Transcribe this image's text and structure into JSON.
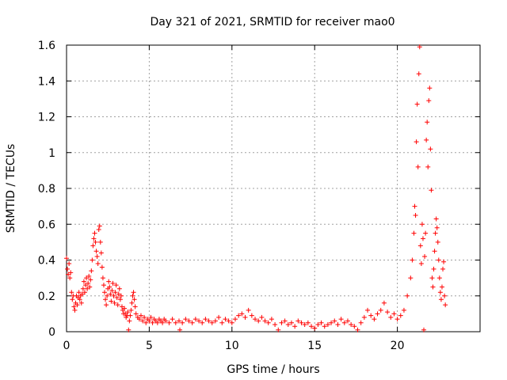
{
  "chart_data": {
    "type": "scatter",
    "title": "Day 321 of 2021, SRMTID for receiver mao0",
    "xlabel": "GPS time / hours",
    "ylabel": "SRMTID / TECUs",
    "xlim": [
      0,
      25
    ],
    "ylim": [
      0,
      1.6
    ],
    "x_ticks": [
      0,
      5,
      10,
      15,
      20
    ],
    "x_tick_labels": [
      "0",
      "5",
      "10",
      "15",
      "20"
    ],
    "y_ticks": [
      0,
      0.2,
      0.4,
      0.6,
      0.8,
      1,
      1.2,
      1.4,
      1.6
    ],
    "y_tick_labels": [
      "0",
      "0.2",
      "0.4",
      "0.6",
      "0.8",
      "1",
      "1.2",
      "1.4",
      "1.6"
    ],
    "grid": true,
    "marker": "+",
    "color": "#ff0000",
    "series": [
      {
        "points": [
          [
            0.0,
            0.41
          ],
          [
            0.05,
            0.35
          ],
          [
            0.1,
            0.32
          ],
          [
            0.15,
            0.38
          ],
          [
            0.2,
            0.3
          ],
          [
            0.25,
            0.33
          ],
          [
            0.3,
            0.22
          ],
          [
            0.35,
            0.18
          ],
          [
            0.4,
            0.2
          ],
          [
            0.45,
            0.14
          ],
          [
            0.5,
            0.12
          ],
          [
            0.55,
            0.16
          ],
          [
            0.6,
            0.2
          ],
          [
            0.65,
            0.15
          ],
          [
            0.7,
            0.19
          ],
          [
            0.75,
            0.22
          ],
          [
            0.8,
            0.18
          ],
          [
            0.85,
            0.2
          ],
          [
            0.9,
            0.16
          ],
          [
            0.95,
            0.21
          ],
          [
            1.0,
            0.24
          ],
          [
            1.05,
            0.28
          ],
          [
            1.1,
            0.22
          ],
          [
            1.15,
            0.26
          ],
          [
            1.2,
            0.3
          ],
          [
            1.25,
            0.24
          ],
          [
            1.3,
            0.27
          ],
          [
            1.35,
            0.31
          ],
          [
            1.4,
            0.25
          ],
          [
            1.45,
            0.29
          ],
          [
            1.5,
            0.34
          ],
          [
            1.55,
            0.4
          ],
          [
            1.6,
            0.48
          ],
          [
            1.65,
            0.52
          ],
          [
            1.7,
            0.55
          ],
          [
            1.75,
            0.5
          ],
          [
            1.8,
            0.45
          ],
          [
            1.85,
            0.42
          ],
          [
            1.9,
            0.38
          ],
          [
            1.95,
            0.57
          ],
          [
            2.0,
            0.59
          ],
          [
            2.05,
            0.5
          ],
          [
            2.1,
            0.44
          ],
          [
            2.15,
            0.36
          ],
          [
            2.2,
            0.3
          ],
          [
            2.25,
            0.26
          ],
          [
            2.3,
            0.22
          ],
          [
            2.35,
            0.18
          ],
          [
            2.4,
            0.15
          ],
          [
            2.45,
            0.2
          ],
          [
            2.5,
            0.24
          ],
          [
            2.55,
            0.28
          ],
          [
            2.6,
            0.25
          ],
          [
            2.65,
            0.21
          ],
          [
            2.7,
            0.17
          ],
          [
            2.75,
            0.23
          ],
          [
            2.8,
            0.27
          ],
          [
            2.85,
            0.2
          ],
          [
            2.9,
            0.16
          ],
          [
            2.95,
            0.22
          ],
          [
            3.0,
            0.26
          ],
          [
            3.05,
            0.19
          ],
          [
            3.1,
            0.15
          ],
          [
            3.15,
            0.21
          ],
          [
            3.2,
            0.24
          ],
          [
            3.25,
            0.18
          ],
          [
            3.3,
            0.2
          ],
          [
            3.35,
            0.14
          ],
          [
            3.4,
            0.12
          ],
          [
            3.45,
            0.1
          ],
          [
            3.5,
            0.13
          ],
          [
            3.55,
            0.1
          ],
          [
            3.6,
            0.08
          ],
          [
            3.65,
            0.09
          ],
          [
            3.7,
            0.11
          ],
          [
            3.75,
            0.01
          ],
          [
            3.8,
            0.06
          ],
          [
            3.85,
            0.09
          ],
          [
            3.9,
            0.12
          ],
          [
            3.95,
            0.16
          ],
          [
            4.0,
            0.2
          ],
          [
            4.05,
            0.22
          ],
          [
            4.1,
            0.18
          ],
          [
            4.15,
            0.14
          ],
          [
            4.2,
            0.1
          ],
          [
            4.3,
            0.08
          ],
          [
            4.4,
            0.07
          ],
          [
            4.5,
            0.09
          ],
          [
            4.6,
            0.06
          ],
          [
            4.7,
            0.08
          ],
          [
            4.8,
            0.05
          ],
          [
            4.9,
            0.07
          ],
          [
            5.0,
            0.06
          ],
          [
            5.1,
            0.08
          ],
          [
            5.2,
            0.05
          ],
          [
            5.3,
            0.07
          ],
          [
            5.4,
            0.06
          ],
          [
            5.5,
            0.05
          ],
          [
            5.6,
            0.07
          ],
          [
            5.7,
            0.06
          ],
          [
            5.8,
            0.05
          ],
          [
            5.9,
            0.07
          ],
          [
            6.0,
            0.06
          ],
          [
            6.2,
            0.05
          ],
          [
            6.4,
            0.07
          ],
          [
            6.6,
            0.05
          ],
          [
            6.8,
            0.06
          ],
          [
            6.85,
            0.01
          ],
          [
            7.0,
            0.05
          ],
          [
            7.2,
            0.07
          ],
          [
            7.4,
            0.06
          ],
          [
            7.6,
            0.05
          ],
          [
            7.8,
            0.07
          ],
          [
            8.0,
            0.06
          ],
          [
            8.2,
            0.05
          ],
          [
            8.4,
            0.07
          ],
          [
            8.6,
            0.06
          ],
          [
            8.8,
            0.05
          ],
          [
            9.0,
            0.06
          ],
          [
            9.2,
            0.08
          ],
          [
            9.4,
            0.05
          ],
          [
            9.6,
            0.07
          ],
          [
            9.8,
            0.06
          ],
          [
            10.0,
            0.05
          ],
          [
            10.2,
            0.07
          ],
          [
            10.4,
            0.09
          ],
          [
            10.6,
            0.1
          ],
          [
            10.8,
            0.08
          ],
          [
            11.0,
            0.12
          ],
          [
            11.2,
            0.09
          ],
          [
            11.4,
            0.07
          ],
          [
            11.6,
            0.06
          ],
          [
            11.8,
            0.08
          ],
          [
            12.0,
            0.06
          ],
          [
            12.2,
            0.05
          ],
          [
            12.4,
            0.07
          ],
          [
            12.6,
            0.04
          ],
          [
            12.8,
            0.01
          ],
          [
            13.0,
            0.05
          ],
          [
            13.2,
            0.06
          ],
          [
            13.4,
            0.04
          ],
          [
            13.6,
            0.05
          ],
          [
            13.8,
            0.03
          ],
          [
            14.0,
            0.06
          ],
          [
            14.2,
            0.05
          ],
          [
            14.4,
            0.04
          ],
          [
            14.6,
            0.05
          ],
          [
            14.8,
            0.03
          ],
          [
            15.0,
            0.02
          ],
          [
            15.2,
            0.04
          ],
          [
            15.4,
            0.05
          ],
          [
            15.6,
            0.03
          ],
          [
            15.8,
            0.04
          ],
          [
            16.0,
            0.05
          ],
          [
            16.2,
            0.06
          ],
          [
            16.4,
            0.04
          ],
          [
            16.6,
            0.07
          ],
          [
            16.8,
            0.05
          ],
          [
            17.0,
            0.06
          ],
          [
            17.2,
            0.04
          ],
          [
            17.4,
            0.03
          ],
          [
            17.6,
            0.01
          ],
          [
            17.8,
            0.05
          ],
          [
            18.0,
            0.08
          ],
          [
            18.2,
            0.12
          ],
          [
            18.4,
            0.09
          ],
          [
            18.6,
            0.07
          ],
          [
            18.8,
            0.1
          ],
          [
            19.0,
            0.12
          ],
          [
            19.2,
            0.16
          ],
          [
            19.4,
            0.11
          ],
          [
            19.6,
            0.08
          ],
          [
            19.8,
            0.1
          ],
          [
            20.0,
            0.07
          ],
          [
            20.2,
            0.09
          ],
          [
            20.4,
            0.12
          ],
          [
            20.6,
            0.2
          ],
          [
            20.8,
            0.3
          ],
          [
            20.9,
            0.4
          ],
          [
            21.0,
            0.55
          ],
          [
            21.05,
            0.7
          ],
          [
            21.1,
            0.65
          ],
          [
            21.15,
            1.06
          ],
          [
            21.2,
            1.27
          ],
          [
            21.25,
            0.92
          ],
          [
            21.3,
            1.44
          ],
          [
            21.35,
            1.59
          ],
          [
            21.4,
            0.48
          ],
          [
            21.45,
            0.38
          ],
          [
            21.5,
            0.6
          ],
          [
            21.55,
            0.52
          ],
          [
            21.6,
            0.01
          ],
          [
            21.65,
            0.42
          ],
          [
            21.7,
            0.55
          ],
          [
            21.75,
            1.07
          ],
          [
            21.8,
            1.17
          ],
          [
            21.85,
            0.92
          ],
          [
            21.9,
            1.29
          ],
          [
            21.95,
            1.36
          ],
          [
            22.0,
            1.02
          ],
          [
            22.05,
            0.79
          ],
          [
            22.1,
            0.3
          ],
          [
            22.15,
            0.25
          ],
          [
            22.2,
            0.35
          ],
          [
            22.25,
            0.45
          ],
          [
            22.3,
            0.55
          ],
          [
            22.35,
            0.63
          ],
          [
            22.4,
            0.58
          ],
          [
            22.45,
            0.5
          ],
          [
            22.5,
            0.4
          ],
          [
            22.55,
            0.3
          ],
          [
            22.6,
            0.22
          ],
          [
            22.65,
            0.18
          ],
          [
            22.7,
            0.25
          ],
          [
            22.75,
            0.35
          ],
          [
            22.8,
            0.39
          ],
          [
            22.85,
            0.2
          ],
          [
            22.9,
            0.15
          ]
        ]
      }
    ]
  }
}
